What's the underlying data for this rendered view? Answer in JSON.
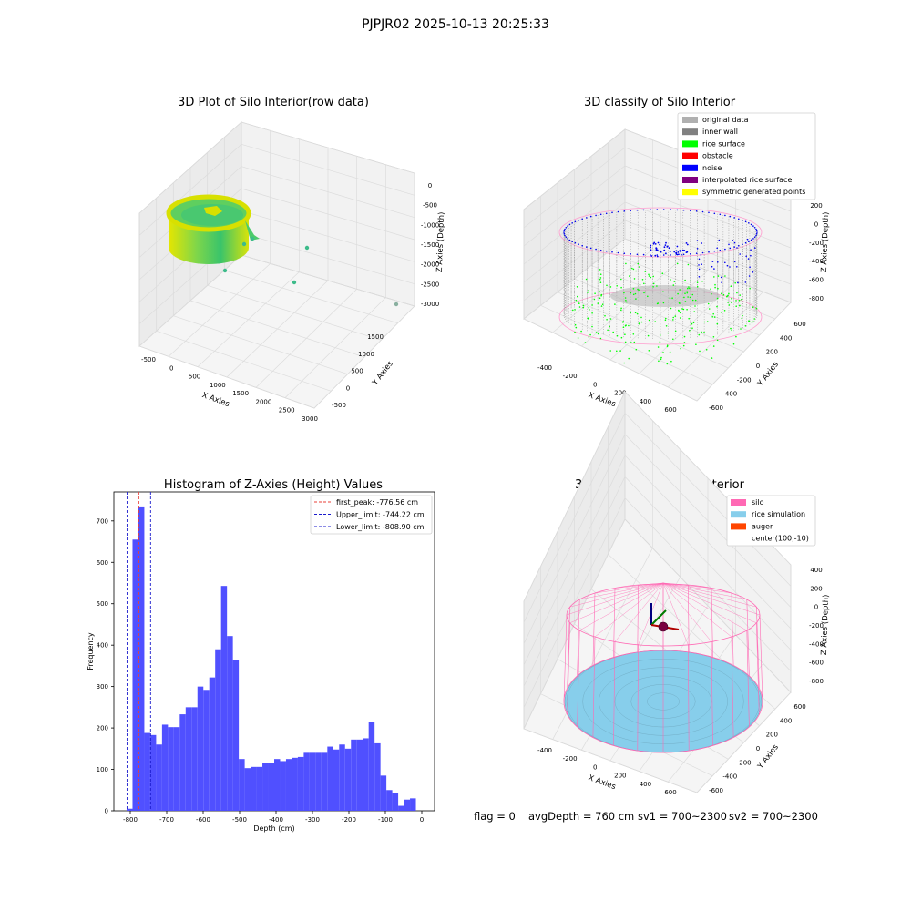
{
  "figure": {
    "suptitle": "PJPJR02 2025-10-13 20:25:33",
    "footer": {
      "flag": "flag = 0",
      "avg_depth": "avgDepth = 760 cm",
      "sv1": "sv1 = 700~2300",
      "sv2": "sv2 = 700~2300"
    }
  },
  "colors": {
    "hist_bar": "#4c4cff",
    "first_peak": "#e8403a",
    "limit": "#1a1acc",
    "silo_wire": "#ff69b4",
    "rice": "#87ceeb",
    "inner_wall": "#888888",
    "rice_surface": "#00ff00",
    "noise": "#0000ee",
    "green_mid": "#5fcf5f",
    "yellow": "#e8e800",
    "teal_dot": "#3dbb8a"
  },
  "chart_data": [
    {
      "type": "scatter",
      "subplot": "3D Plot of Silo Interior",
      "title": "3D Plot of Silo Interior(row data)",
      "xlabel": "X Axies",
      "ylabel": "Y Axies",
      "zlabel": "Z Axies (Depth)",
      "xticks": [
        "-500",
        "0",
        "500",
        "1000",
        "1500",
        "2000",
        "2500",
        "3000"
      ],
      "yticks": [
        "-500",
        "0",
        "500",
        "1000",
        "1500"
      ],
      "zticks": [
        "0",
        "-500",
        "-1000",
        "-1500",
        "-2000",
        "-2500",
        "-3000"
      ],
      "xlim": [
        -700,
        3100
      ],
      "ylim": [
        -700,
        1700
      ],
      "zlim": [
        -3100,
        100
      ],
      "outlier_points": [
        {
          "x": 550,
          "y": 100,
          "z": -1000
        },
        {
          "x": 800,
          "y": 300,
          "z": -1500
        },
        {
          "x": 400,
          "y": -300,
          "z": -1900
        },
        {
          "x": 1700,
          "y": 500,
          "z": -2000
        },
        {
          "x": 2500,
          "y": 1500,
          "z": -3000
        },
        {
          "x": 1900,
          "y": 1200,
          "z": -1800
        }
      ]
    },
    {
      "type": "scatter",
      "subplot": "3D classify of Silo Interior",
      "title": "3D classify of Silo Interior",
      "xlabel": "X Axies",
      "ylabel": "Y Axies",
      "zlabel": "Z Axies (Depth)",
      "xticks": [
        "-400",
        "-200",
        "0",
        "200",
        "400",
        "600"
      ],
      "yticks": [
        "-600",
        "-400",
        "-200",
        "0",
        "200",
        "400",
        "600"
      ],
      "zticks": [
        "200",
        "0",
        "-200",
        "-400",
        "-600",
        "-800"
      ],
      "legend": [
        {
          "label": "original data",
          "color": "#b0b0b0"
        },
        {
          "label": "inner wall",
          "color": "#808080"
        },
        {
          "label": "rice surface",
          "color": "#00ff00"
        },
        {
          "label": "obstacle",
          "color": "#ff0000"
        },
        {
          "label": "noise",
          "color": "#0000ff"
        },
        {
          "label": "interpolated rice surface",
          "color": "#800080"
        },
        {
          "label": "symmetric generated points",
          "color": "#ffff00"
        }
      ],
      "legend_loc": "upper right"
    },
    {
      "type": "bar",
      "subplot": "Histogram of Z-Axies (Height) Values",
      "title": "Histogram of Z-Axies (Height) Values",
      "xlabel": "Depth (cm)",
      "ylabel": "Frequency",
      "xlim": [
        -845,
        35
      ],
      "ylim": [
        0,
        770
      ],
      "xticks": [
        -800,
        -700,
        -600,
        -500,
        -400,
        -300,
        -200,
        -100,
        0
      ],
      "yticks": [
        0,
        100,
        200,
        300,
        400,
        500,
        600,
        700
      ],
      "bin_start": -810,
      "bin_width": 16.2,
      "values": [
        5,
        655,
        735,
        188,
        183,
        160,
        208,
        202,
        202,
        233,
        250,
        250,
        300,
        292,
        322,
        390,
        543,
        422,
        365,
        125,
        103,
        106,
        106,
        115,
        115,
        125,
        120,
        125,
        128,
        130,
        140,
        140,
        140,
        140,
        155,
        148,
        160,
        150,
        172,
        172,
        175,
        215,
        163,
        85,
        50,
        42,
        12,
        27,
        30
      ],
      "vlines": [
        {
          "label": "first_peak: -776.56 cm",
          "x": -776.56,
          "color": "#e8403a"
        },
        {
          "label": "Upper_limit: -744.22 cm",
          "x": -744.22,
          "color": "#1a1acc"
        },
        {
          "label": "Lower_limit: -808.90 cm",
          "x": -808.9,
          "color": "#1a1acc"
        }
      ],
      "legend_loc": "upper right"
    },
    {
      "type": "scatter",
      "subplot": "3D simulation of Silo Interior",
      "title": "3D simulation of Silo Interior",
      "xlabel": "X Axies",
      "ylabel": "Y Axies",
      "zlabel": "Z Axies (Depth)",
      "xticks": [
        "-400",
        "-200",
        "0",
        "200",
        "400",
        "600"
      ],
      "yticks": [
        "-600",
        "-400",
        "-200",
        "0",
        "200",
        "400",
        "600"
      ],
      "zticks": [
        "400",
        "200",
        "0",
        "-200",
        "-400",
        "-600",
        "-800"
      ],
      "legend": [
        {
          "label": "silo",
          "color": "#ff69b4"
        },
        {
          "label": "rice simulation",
          "color": "#87ceeb"
        },
        {
          "label": "auger",
          "color": "#ff4500"
        },
        {
          "label": "center(100,-10)",
          "color": ""
        }
      ],
      "legend_loc": "upper right"
    }
  ]
}
